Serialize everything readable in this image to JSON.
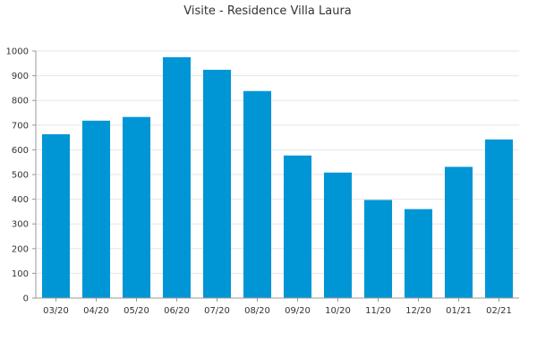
{
  "chart_data": {
    "type": "bar",
    "title": "Visite - Residence Villa Laura",
    "xlabel": "",
    "ylabel": "",
    "categories": [
      "03/20",
      "04/20",
      "05/20",
      "06/20",
      "07/20",
      "08/20",
      "09/20",
      "10/20",
      "11/20",
      "12/20",
      "01/21",
      "02/21"
    ],
    "values": [
      663,
      718,
      733,
      975,
      924,
      838,
      577,
      508,
      397,
      360,
      531,
      642
    ],
    "ylim": [
      0,
      1000
    ],
    "yticks": [
      0,
      100,
      200,
      300,
      400,
      500,
      600,
      700,
      800,
      900,
      1000
    ],
    "grid": true,
    "legend": "none",
    "colors": {
      "bar": "#0096d6",
      "grid": "#e6e6e6",
      "axis": "#999999",
      "text": "#333333"
    }
  }
}
